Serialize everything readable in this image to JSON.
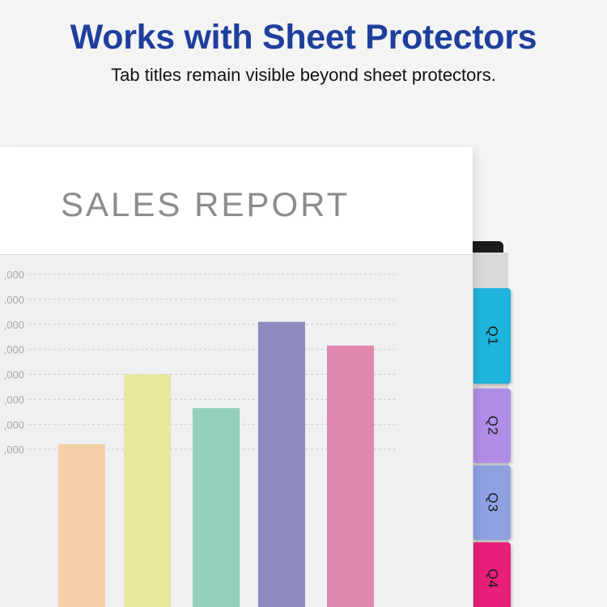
{
  "headline": "Works with Sheet Protectors",
  "subheadline": "Tab titles remain visible beyond sheet protectors.",
  "report_title": "SALES REPORT",
  "tabs": [
    {
      "label": "Q1",
      "color": "#1fb4dc"
    },
    {
      "label": "Q2",
      "color": "#b08ee8"
    },
    {
      "label": "Q3",
      "color": "#8ea2e2"
    },
    {
      "label": "Q4",
      "color": "#e8207a"
    }
  ],
  "chart_data": {
    "type": "bar",
    "title": "SALES REPORT",
    "ytick_labels": [
      ",000",
      ",000",
      ",000",
      ",000",
      ",000",
      ",000",
      ",000",
      ",000"
    ],
    "ylim": [
      0,
      8
    ],
    "grid": true,
    "values": [
      1.2,
      4.0,
      2.65,
      6.1,
      5.15
    ],
    "colors": [
      "#f6cfa8",
      "#e6e79a",
      "#93cfbd",
      "#8e8bbf",
      "#e088b0"
    ]
  }
}
